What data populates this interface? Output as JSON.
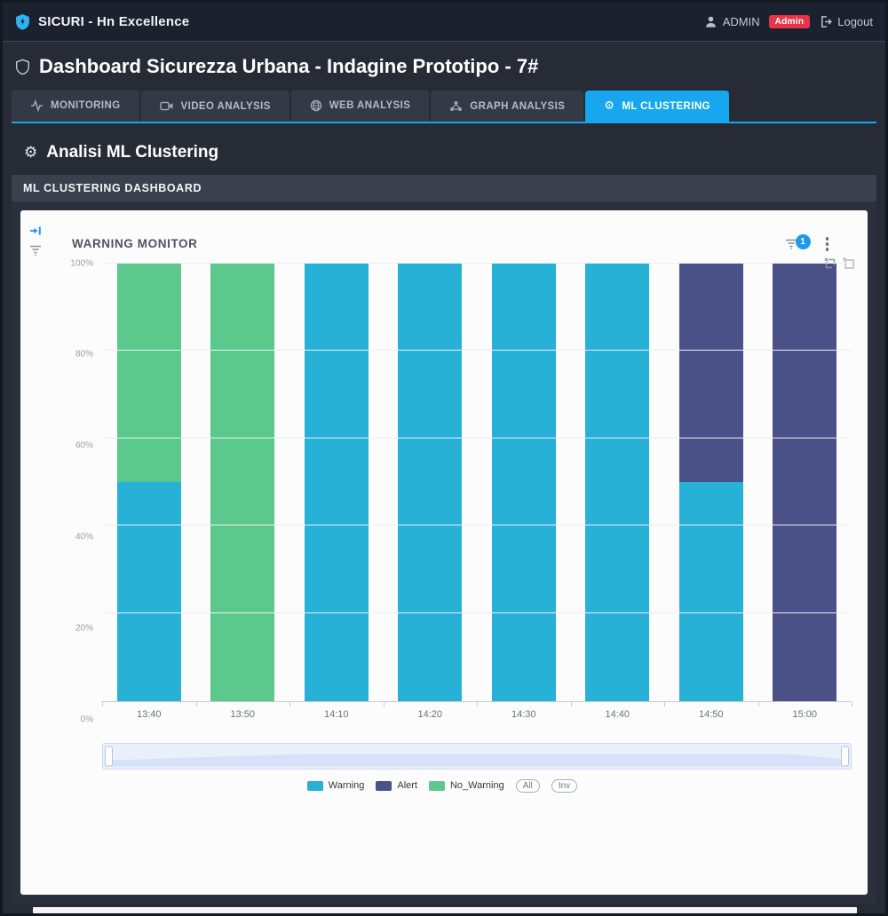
{
  "topbar": {
    "brand": "SICURI - Hn Excellence",
    "user": "ADMIN",
    "role_badge": "Admin",
    "logout_label": "Logout"
  },
  "page": {
    "title": "Dashboard Sicurezza Urbana - Indagine Prototipo - 7#"
  },
  "tabs": {
    "items": [
      {
        "label": "MONITORING",
        "active": false
      },
      {
        "label": "VIDEO ANALYSIS",
        "active": false
      },
      {
        "label": "WEB ANALYSIS",
        "active": false
      },
      {
        "label": "GRAPH ANALYSIS",
        "active": false
      },
      {
        "label": "ML CLUSTERING",
        "active": true
      }
    ]
  },
  "section": {
    "heading": "Analisi ML Clustering"
  },
  "panel": {
    "header": "ML CLUSTERING DASHBOARD"
  },
  "chart": {
    "title": "WARNING MONITOR",
    "filter_badge_count": "1",
    "legend_buttons": [
      "All",
      "Inv"
    ]
  },
  "chart_data": {
    "type": "bar",
    "stacked": true,
    "stack_unit": "percent",
    "title": "WARNING MONITOR",
    "categories": [
      "13:40",
      "13:50",
      "14:10",
      "14:20",
      "14:30",
      "14:40",
      "14:50",
      "15:00"
    ],
    "series": [
      {
        "name": "Warning",
        "color": "#28b1d7",
        "values": [
          50,
          0,
          100,
          100,
          100,
          100,
          50,
          0
        ]
      },
      {
        "name": "Alert",
        "color": "#4a5187",
        "values": [
          0,
          0,
          0,
          0,
          0,
          0,
          50,
          100
        ]
      },
      {
        "name": "No_Warning",
        "color": "#5bc98b",
        "values": [
          50,
          100,
          0,
          0,
          0,
          0,
          0,
          0
        ]
      }
    ],
    "xlabel": "",
    "ylabel": "",
    "ylim": [
      0,
      100
    ],
    "yticks": [
      "0%",
      "20%",
      "40%",
      "60%",
      "80%",
      "100%"
    ],
    "grid": true,
    "legend_position": "bottom"
  }
}
